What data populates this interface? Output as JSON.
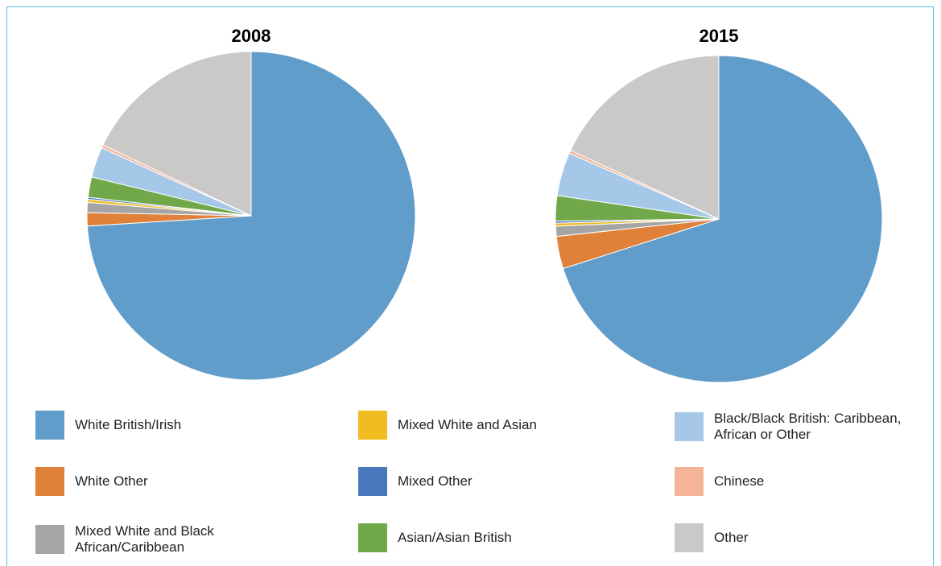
{
  "chart_data": [
    {
      "type": "pie",
      "title": "2008",
      "categories": [
        "White British/Irish",
        "White Other",
        "Mixed White and Black African/Caribbean",
        "Mixed White and Asian",
        "Mixed Other",
        "Asian/Asian British",
        "Black/Black British: Caribbean, African or Other",
        "Chinese",
        "Other"
      ],
      "values": [
        74,
        1.3,
        1,
        0.3,
        0.2,
        2,
        3,
        0.3,
        17.9
      ],
      "colors": [
        "#619dcb",
        "#e0813a",
        "#a5a5a5",
        "#f0bc1f",
        "#4a78bf",
        "#70a84a",
        "#a6c8e8",
        "#f5b49a",
        "#cbc9c8"
      ]
    },
    {
      "type": "pie",
      "title": "2015",
      "categories": [
        "White British/Irish",
        "White Other",
        "Mixed White and Black African/Caribbean",
        "Mixed White and Asian",
        "Mixed Other",
        "Asian/Asian British",
        "Black/Black British: Caribbean, African or Other",
        "Chinese",
        "Other"
      ],
      "values": [
        70.1,
        3.2,
        1,
        0.3,
        0.2,
        2.5,
        4.3,
        0.3,
        18.1
      ],
      "colors": [
        "#619dcb",
        "#e0813a",
        "#a5a5a5",
        "#f0bc1f",
        "#4a78bf",
        "#70a84a",
        "#a6c8e8",
        "#f5b49a",
        "#cbc9c8"
      ]
    }
  ]
}
